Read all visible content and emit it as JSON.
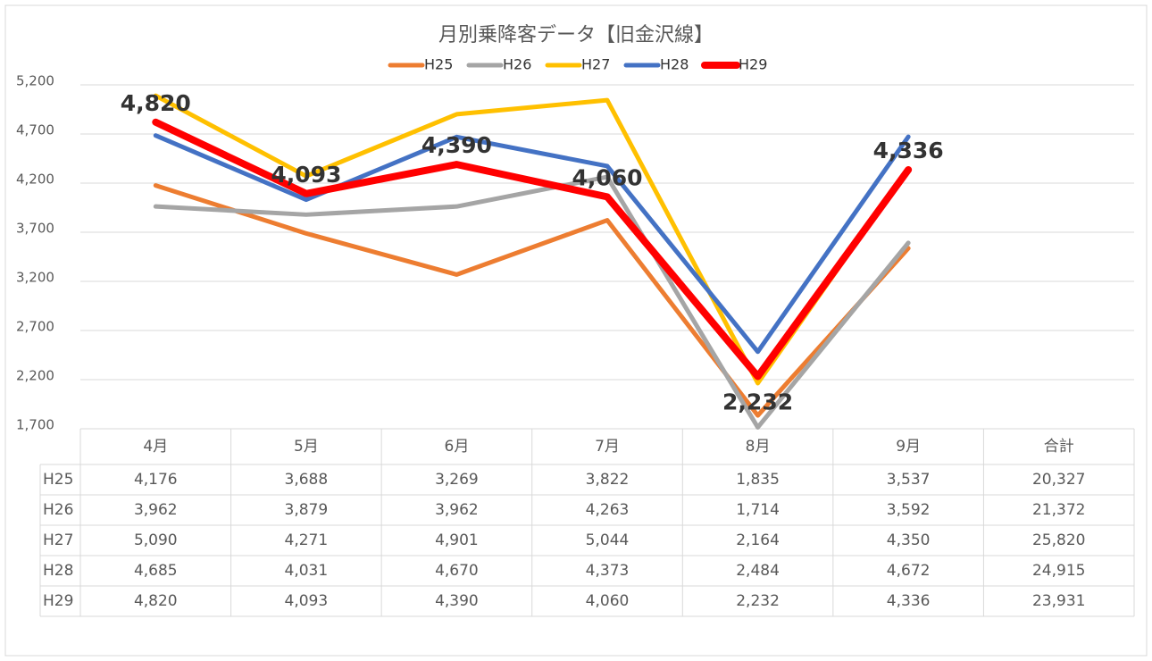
{
  "chart_data": {
    "type": "line",
    "title": "月別乗降客データ【旧金沢線】",
    "categories": [
      "4月",
      "5月",
      "6月",
      "7月",
      "8月",
      "9月"
    ],
    "total_header": "合計",
    "ylim": [
      1700,
      5200
    ],
    "yticks": [
      {
        "value": 1700,
        "label": "1,700"
      },
      {
        "value": 2200,
        "label": "2,200"
      },
      {
        "value": 2700,
        "label": "2,700"
      },
      {
        "value": 3200,
        "label": "3,200"
      },
      {
        "value": 3700,
        "label": "3,700"
      },
      {
        "value": 4200,
        "label": "4,200"
      },
      {
        "value": 4700,
        "label": "4,700"
      },
      {
        "value": 5200,
        "label": "5,200"
      }
    ],
    "grid": true,
    "legend": "top",
    "series": [
      {
        "name": "H25",
        "color": "#ed7d31",
        "values": [
          4176,
          3688,
          3269,
          3822,
          1835,
          3537
        ],
        "value_labels": [
          "4,176",
          "3,688",
          "3,269",
          "3,822",
          "1,835",
          "3,537"
        ],
        "total": 20327,
        "total_label": "20,327"
      },
      {
        "name": "H26",
        "color": "#a5a5a5",
        "values": [
          3962,
          3879,
          3962,
          4263,
          1714,
          3592
        ],
        "value_labels": [
          "3,962",
          "3,879",
          "3,962",
          "4,263",
          "1,714",
          "3,592"
        ],
        "total": 21372,
        "total_label": "21,372"
      },
      {
        "name": "H27",
        "color": "#ffc000",
        "values": [
          5090,
          4271,
          4901,
          5044,
          2164,
          4350
        ],
        "value_labels": [
          "5,090",
          "4,271",
          "4,901",
          "5,044",
          "2,164",
          "4,350"
        ],
        "total": 25820,
        "total_label": "25,820"
      },
      {
        "name": "H28",
        "color": "#4472c4",
        "values": [
          4685,
          4031,
          4670,
          4373,
          2484,
          4672
        ],
        "value_labels": [
          "4,685",
          "4,031",
          "4,670",
          "4,373",
          "2,484",
          "4,672"
        ],
        "total": 24915,
        "total_label": "24,915"
      },
      {
        "name": "H29",
        "color": "#ff0000",
        "values": [
          4820,
          4093,
          4390,
          4060,
          2232,
          4336
        ],
        "value_labels": [
          "4,820",
          "4,093",
          "4,390",
          "4,060",
          "2,232",
          "4,336"
        ],
        "total": 23931,
        "total_label": "23,931",
        "data_labels": true
      }
    ]
  }
}
